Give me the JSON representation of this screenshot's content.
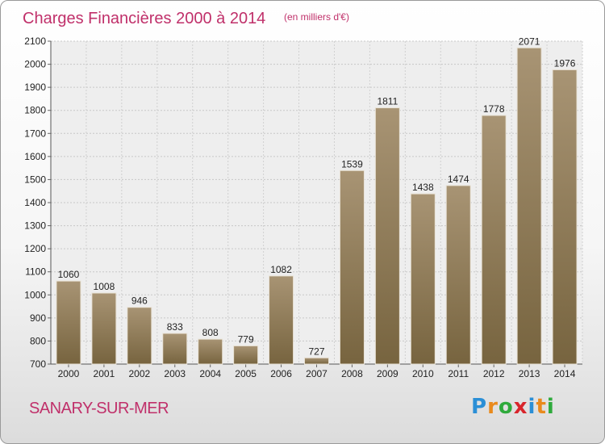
{
  "page": {
    "place_name": "SANARY-SUR-MER",
    "brand": "Proxiti",
    "brand_letters": [
      {
        "ch": "P",
        "color": "#2b8fd6"
      },
      {
        "ch": "r",
        "color": "#e98a1d"
      },
      {
        "ch": "o",
        "color": "#2faa3c"
      },
      {
        "ch": "x",
        "color": "#d8262c"
      },
      {
        "ch": "i",
        "color": "#2b8fd6"
      },
      {
        "ch": "t",
        "color": "#e98a1d"
      },
      {
        "ch": "i",
        "color": "#2faa3c"
      }
    ]
  },
  "chart_data": {
    "type": "bar",
    "title": "Charges Financières 2000 à 2014",
    "subtitle": "(en milliers d'€)",
    "categories": [
      "2000",
      "2001",
      "2002",
      "2003",
      "2004",
      "2005",
      "2006",
      "2007",
      "2008",
      "2009",
      "2010",
      "2011",
      "2012",
      "2013",
      "2014"
    ],
    "values": [
      1060,
      1008,
      946,
      833,
      808,
      779,
      1082,
      727,
      1539,
      1811,
      1438,
      1474,
      1778,
      2071,
      1976
    ],
    "ylim": [
      700,
      2100
    ],
    "yticks": [
      700,
      800,
      900,
      1000,
      1100,
      1200,
      1300,
      1400,
      1500,
      1600,
      1700,
      1800,
      1900,
      2000,
      2100
    ],
    "grid": true,
    "bar_color": "#8a7656",
    "title_color": "#c0306a"
  }
}
